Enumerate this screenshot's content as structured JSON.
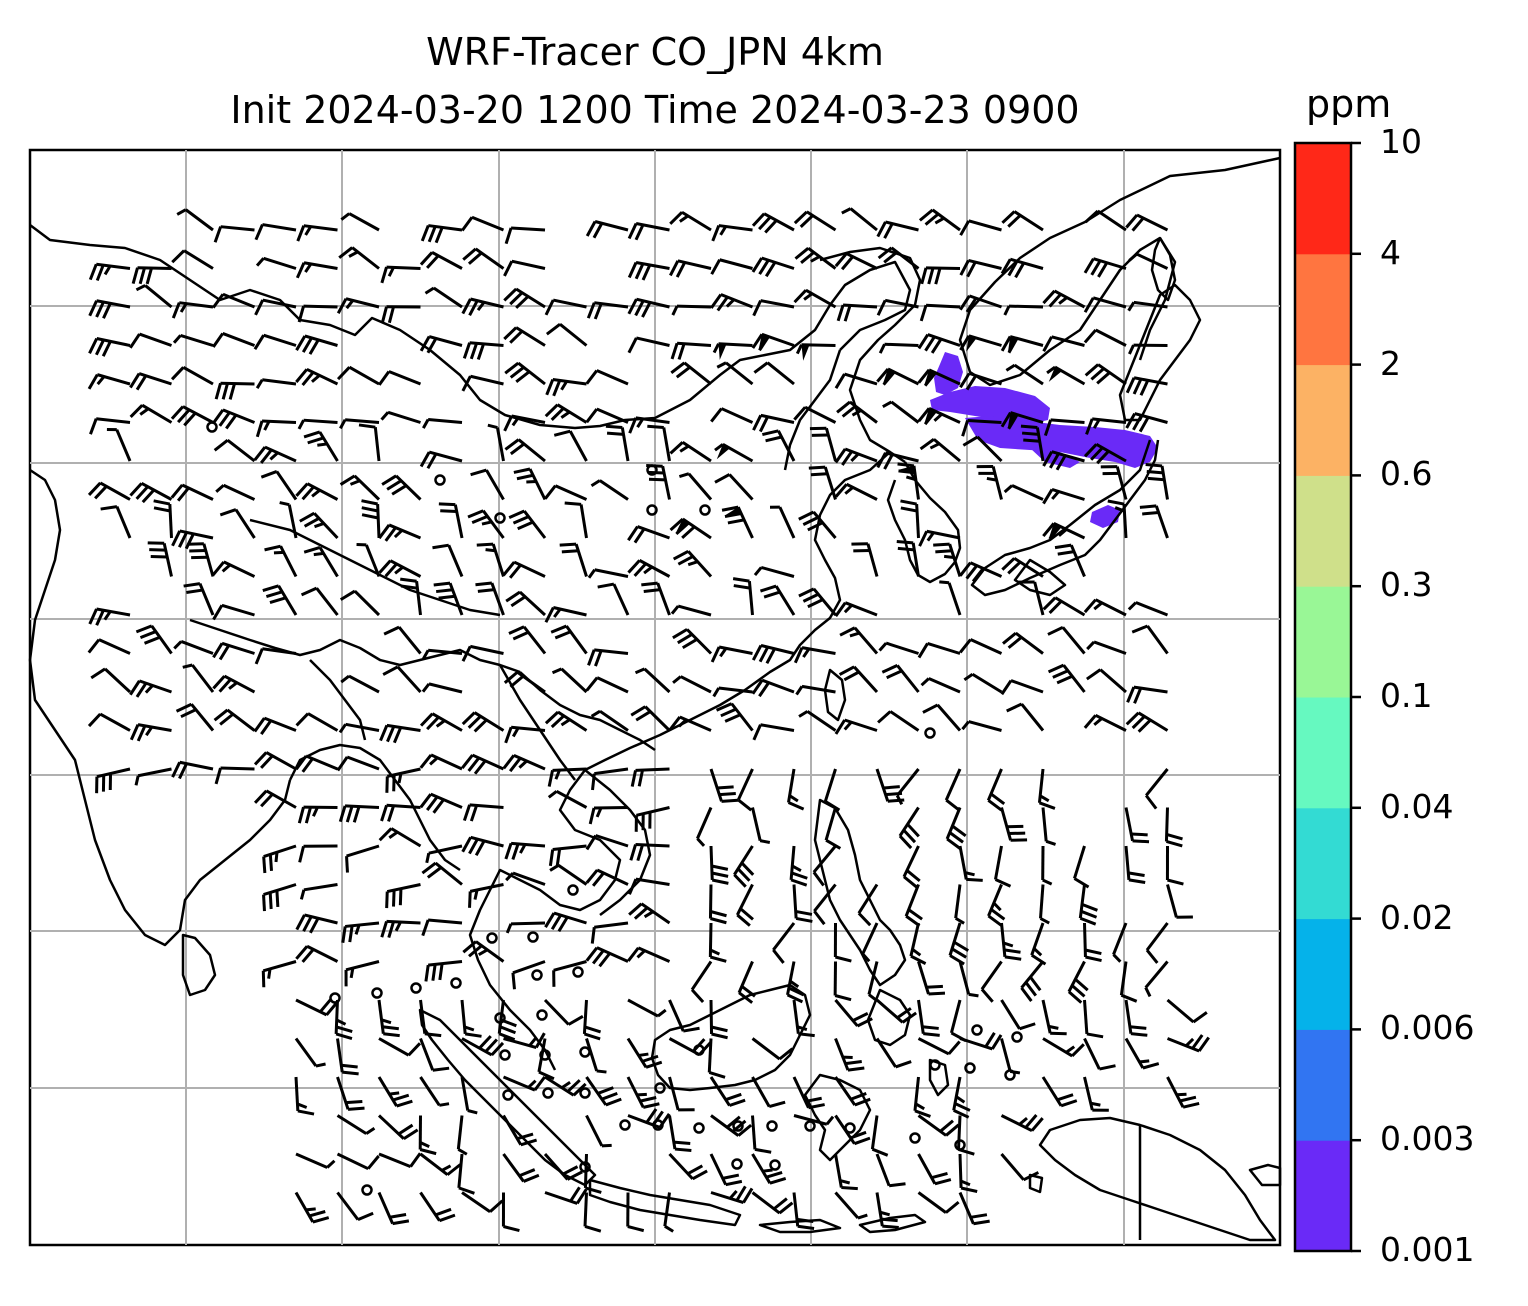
{
  "title": {
    "line1": "WRF-Tracer CO_JPN 4km",
    "line2": "Init 2024-03-20 1200 Time 2024-03-23 0900"
  },
  "colorbar": {
    "unit": "ppm",
    "levels": [
      "0.001",
      "0.003",
      "0.006",
      "0.02",
      "0.04",
      "0.1",
      "0.3",
      "0.6",
      "2",
      "4",
      "10"
    ],
    "colors": [
      "#6a2af7",
      "#3175f2",
      "#05b2ea",
      "#33dbd3",
      "#66f9c0",
      "#99f796",
      "#cfe08a",
      "#fcb264",
      "#ff7540",
      "#ff2818"
    ]
  },
  "map": {
    "gridlines": true,
    "plume_color": "#6a2af7",
    "wind_barbs": true
  }
}
